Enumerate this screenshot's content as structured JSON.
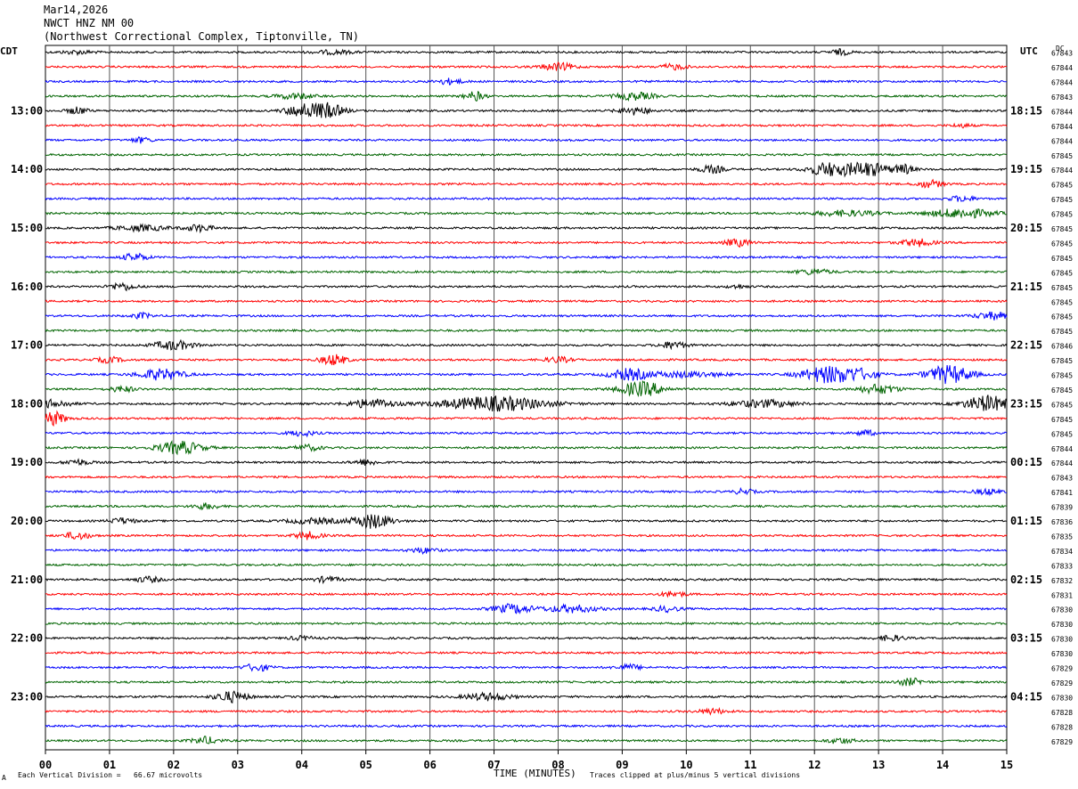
{
  "header": {
    "date": "Mar14,2026",
    "station": "NWCT HNZ NM 00",
    "location": "(Northwest Correctional Complex, Tiptonville, TN)"
  },
  "footer": {
    "scale_note": "Each Vertical Division =   66.67 microvolts",
    "clip_note": "Traces clipped at plus/minus 5 vertical divisions",
    "corner_mark": "A"
  },
  "chart_data": {
    "type": "line",
    "title": "",
    "xlabel": "TIME (MINUTES)",
    "x_ticks": [
      "00",
      "01",
      "02",
      "03",
      "04",
      "05",
      "06",
      "07",
      "08",
      "09",
      "10",
      "11",
      "12",
      "13",
      "14",
      "15"
    ],
    "xlim": [
      0,
      15
    ],
    "grid": true,
    "left_axis_label": "CDT",
    "right_axis_label": "UTC",
    "dc_label": "DC",
    "left_hour_labels": [
      "13:00",
      "14:00",
      "15:00",
      "16:00",
      "17:00",
      "18:00",
      "19:00",
      "20:00",
      "21:00",
      "22:00",
      "23:00"
    ],
    "right_hour_labels": [
      "18:15",
      "19:15",
      "20:15",
      "21:15",
      "22:15",
      "23:15",
      "00:15",
      "01:15",
      "02:15",
      "03:15",
      "04:15"
    ],
    "hour_label_first_trace": 4,
    "trace_count": 48,
    "trace_colors": [
      "#000000",
      "#ff0000",
      "#0000ff",
      "#006400"
    ],
    "dc_offsets": [
      67843,
      67844,
      67844,
      67843,
      67844,
      67844,
      67844,
      67845,
      67844,
      67845,
      67845,
      67845,
      67845,
      67845,
      67845,
      67845,
      67845,
      67845,
      67845,
      67845,
      67846,
      67845,
      67845,
      67845,
      67845,
      67845,
      67845,
      67844,
      67844,
      67843,
      67841,
      67839,
      67836,
      67835,
      67834,
      67833,
      67832,
      67831,
      67830,
      67830,
      67830,
      67830,
      67829,
      67829,
      67830,
      67828,
      67828,
      67829
    ],
    "noise_amplitude": 1.1,
    "events": [
      {
        "trace": 0,
        "minute": 0.5,
        "width": 0.25,
        "amp": 2
      },
      {
        "trace": 0,
        "minute": 4.5,
        "width": 0.3,
        "amp": 2
      },
      {
        "trace": 0,
        "minute": 12.4,
        "width": 0.15,
        "amp": 3
      },
      {
        "trace": 1,
        "minute": 8.0,
        "width": 0.25,
        "amp": 4
      },
      {
        "trace": 1,
        "minute": 9.8,
        "width": 0.2,
        "amp": 3
      },
      {
        "trace": 2,
        "minute": 6.3,
        "width": 0.2,
        "amp": 3
      },
      {
        "trace": 3,
        "minute": 3.9,
        "width": 0.3,
        "amp": 3
      },
      {
        "trace": 3,
        "minute": 6.7,
        "width": 0.15,
        "amp": 5
      },
      {
        "trace": 3,
        "minute": 9.2,
        "width": 0.3,
        "amp": 4
      },
      {
        "trace": 4,
        "minute": 0.5,
        "width": 0.15,
        "amp": 4
      },
      {
        "trace": 4,
        "minute": 4.0,
        "width": 0.25,
        "amp": 7
      },
      {
        "trace": 4,
        "minute": 4.4,
        "width": 0.25,
        "amp": 8
      },
      {
        "trace": 4,
        "minute": 9.2,
        "width": 0.25,
        "amp": 4
      },
      {
        "trace": 5,
        "minute": 14.3,
        "width": 0.15,
        "amp": 2
      },
      {
        "trace": 6,
        "minute": 1.5,
        "width": 0.15,
        "amp": 3
      },
      {
        "trace": 8,
        "minute": 10.4,
        "width": 0.2,
        "amp": 4
      },
      {
        "trace": 8,
        "minute": 12.2,
        "width": 0.3,
        "amp": 7
      },
      {
        "trace": 8,
        "minute": 12.8,
        "width": 0.35,
        "amp": 8
      },
      {
        "trace": 8,
        "minute": 13.4,
        "width": 0.15,
        "amp": 5
      },
      {
        "trace": 9,
        "minute": 13.8,
        "width": 0.2,
        "amp": 4
      },
      {
        "trace": 10,
        "minute": 14.3,
        "width": 0.2,
        "amp": 3
      },
      {
        "trace": 11,
        "minute": 14.3,
        "width": 0.5,
        "amp": 5
      },
      {
        "trace": 11,
        "minute": 12.5,
        "width": 0.5,
        "amp": 3
      },
      {
        "trace": 12,
        "minute": 1.5,
        "width": 0.4,
        "amp": 3
      },
      {
        "trace": 12,
        "minute": 2.4,
        "width": 0.2,
        "amp": 4
      },
      {
        "trace": 13,
        "minute": 10.8,
        "width": 0.2,
        "amp": 4
      },
      {
        "trace": 13,
        "minute": 13.6,
        "width": 0.25,
        "amp": 4
      },
      {
        "trace": 14,
        "minute": 1.4,
        "width": 0.2,
        "amp": 4
      },
      {
        "trace": 15,
        "minute": 12.0,
        "width": 0.25,
        "amp": 3
      },
      {
        "trace": 16,
        "minute": 1.2,
        "width": 0.2,
        "amp": 4
      },
      {
        "trace": 16,
        "minute": 10.8,
        "width": 0.15,
        "amp": 2
      },
      {
        "trace": 18,
        "minute": 14.8,
        "width": 0.3,
        "amp": 4
      },
      {
        "trace": 18,
        "minute": 1.5,
        "width": 0.15,
        "amp": 3
      },
      {
        "trace": 20,
        "minute": 2.0,
        "width": 0.3,
        "amp": 5
      },
      {
        "trace": 20,
        "minute": 9.8,
        "width": 0.2,
        "amp": 4
      },
      {
        "trace": 21,
        "minute": 4.5,
        "width": 0.2,
        "amp": 6
      },
      {
        "trace": 21,
        "minute": 1.0,
        "width": 0.2,
        "amp": 3
      },
      {
        "trace": 21,
        "minute": 8.0,
        "width": 0.2,
        "amp": 3
      },
      {
        "trace": 22,
        "minute": 1.8,
        "width": 0.35,
        "amp": 6
      },
      {
        "trace": 22,
        "minute": 9.1,
        "width": 0.3,
        "amp": 6
      },
      {
        "trace": 22,
        "minute": 10.0,
        "width": 0.6,
        "amp": 3
      },
      {
        "trace": 22,
        "minute": 12.2,
        "width": 0.4,
        "amp": 9
      },
      {
        "trace": 22,
        "minute": 12.7,
        "width": 0.3,
        "amp": 5
      },
      {
        "trace": 22,
        "minute": 14.1,
        "width": 0.35,
        "amp": 10
      },
      {
        "trace": 23,
        "minute": 9.3,
        "width": 0.35,
        "amp": 8
      },
      {
        "trace": 23,
        "minute": 13.0,
        "width": 0.3,
        "amp": 5
      },
      {
        "trace": 23,
        "minute": 1.2,
        "width": 0.2,
        "amp": 3
      },
      {
        "trace": 24,
        "minute": 5.1,
        "width": 0.35,
        "amp": 5
      },
      {
        "trace": 24,
        "minute": 7.0,
        "width": 0.8,
        "amp": 8
      },
      {
        "trace": 24,
        "minute": 11.2,
        "width": 0.5,
        "amp": 4
      },
      {
        "trace": 24,
        "minute": 14.7,
        "width": 0.35,
        "amp": 9
      },
      {
        "trace": 24,
        "minute": 0.1,
        "width": 0.3,
        "amp": 4
      },
      {
        "trace": 25,
        "minute": 0.1,
        "width": 0.2,
        "amp": 8
      },
      {
        "trace": 26,
        "minute": 4.0,
        "width": 0.2,
        "amp": 3
      },
      {
        "trace": 26,
        "minute": 12.8,
        "width": 0.15,
        "amp": 3
      },
      {
        "trace": 27,
        "minute": 2.1,
        "width": 0.35,
        "amp": 7
      },
      {
        "trace": 27,
        "minute": 4.1,
        "width": 0.2,
        "amp": 3
      },
      {
        "trace": 28,
        "minute": 0.5,
        "width": 0.2,
        "amp": 3
      },
      {
        "trace": 28,
        "minute": 5.0,
        "width": 0.2,
        "amp": 3
      },
      {
        "trace": 30,
        "minute": 10.9,
        "width": 0.15,
        "amp": 3
      },
      {
        "trace": 30,
        "minute": 14.7,
        "width": 0.2,
        "amp": 3
      },
      {
        "trace": 31,
        "minute": 2.5,
        "width": 0.2,
        "amp": 3
      },
      {
        "trace": 32,
        "minute": 1.2,
        "width": 0.2,
        "amp": 3
      },
      {
        "trace": 32,
        "minute": 5.1,
        "width": 0.3,
        "amp": 8
      },
      {
        "trace": 32,
        "minute": 4.2,
        "width": 0.4,
        "amp": 3
      },
      {
        "trace": 33,
        "minute": 0.5,
        "width": 0.2,
        "amp": 4
      },
      {
        "trace": 33,
        "minute": 4.1,
        "width": 0.2,
        "amp": 4
      },
      {
        "trace": 34,
        "minute": 5.9,
        "width": 0.2,
        "amp": 3
      },
      {
        "trace": 36,
        "minute": 1.6,
        "width": 0.2,
        "amp": 3
      },
      {
        "trace": 36,
        "minute": 4.4,
        "width": 0.2,
        "amp": 3
      },
      {
        "trace": 37,
        "minute": 9.8,
        "width": 0.2,
        "amp": 3
      },
      {
        "trace": 38,
        "minute": 7.3,
        "width": 0.3,
        "amp": 5
      },
      {
        "trace": 38,
        "minute": 8.2,
        "width": 0.4,
        "amp": 4
      },
      {
        "trace": 38,
        "minute": 9.7,
        "width": 0.2,
        "amp": 3
      },
      {
        "trace": 40,
        "minute": 4.0,
        "width": 0.2,
        "amp": 2
      },
      {
        "trace": 40,
        "minute": 13.2,
        "width": 0.2,
        "amp": 3
      },
      {
        "trace": 42,
        "minute": 3.3,
        "width": 0.2,
        "amp": 4
      },
      {
        "trace": 42,
        "minute": 9.1,
        "width": 0.2,
        "amp": 3
      },
      {
        "trace": 43,
        "minute": 13.5,
        "width": 0.2,
        "amp": 4
      },
      {
        "trace": 44,
        "minute": 2.9,
        "width": 0.25,
        "amp": 6
      },
      {
        "trace": 44,
        "minute": 6.9,
        "width": 0.35,
        "amp": 4
      },
      {
        "trace": 45,
        "minute": 10.4,
        "width": 0.2,
        "amp": 3
      },
      {
        "trace": 47,
        "minute": 2.5,
        "width": 0.2,
        "amp": 4
      },
      {
        "trace": 47,
        "minute": 12.4,
        "width": 0.2,
        "amp": 3
      }
    ]
  }
}
